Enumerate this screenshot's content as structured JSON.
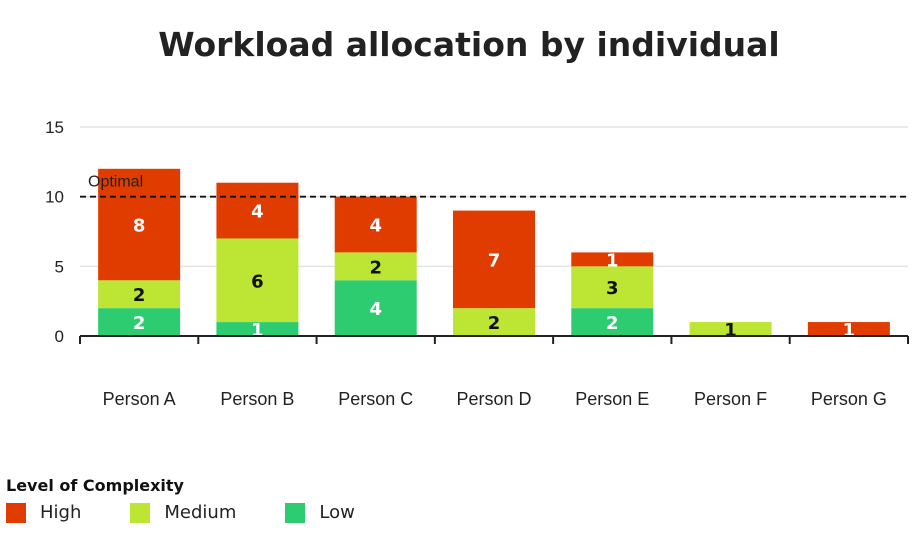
{
  "chart_data": {
    "type": "bar",
    "stacked": true,
    "title": "Workload allocation by individual",
    "categories": [
      "Person A",
      "Person B",
      "Person C",
      "Person D",
      "Person E",
      "Person F",
      "Person G"
    ],
    "series": [
      {
        "name": "Low",
        "color": "#2ecc71",
        "label_color": "#ffffff",
        "values": [
          2,
          1,
          4,
          0,
          2,
          0,
          0
        ]
      },
      {
        "name": "Medium",
        "color": "#bde533",
        "label_color": "#111111",
        "values": [
          2,
          6,
          2,
          2,
          3,
          1,
          0
        ]
      },
      {
        "name": "High",
        "color": "#e03c00",
        "label_color": "#ffffff",
        "values": [
          8,
          4,
          4,
          7,
          1,
          0,
          1
        ]
      }
    ],
    "ylim": [
      0,
      15
    ],
    "yticks": [
      0,
      5,
      10,
      15
    ],
    "grid": true,
    "reference_line": {
      "name": "Optimal",
      "value": 10
    },
    "legend": {
      "title": "Level of Complexity",
      "placement": "bottom-left",
      "items": [
        "High",
        "Medium",
        "Low"
      ]
    }
  }
}
